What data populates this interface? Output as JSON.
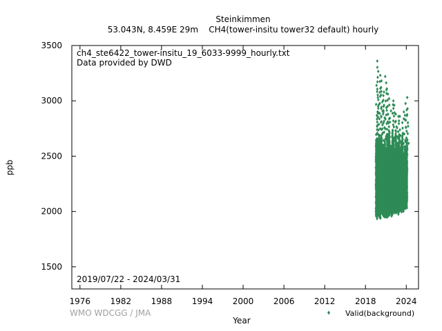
{
  "chart_data": {
    "type": "scatter",
    "title": "Steinkimmen",
    "subtitle": "53.043N, 8.459E 29m    CH4(tower-insitu tower32 default) hourly",
    "annotation_lines": [
      "ch4_ste6422_tower-insitu_19_6033-9999_hourly.txt",
      "Data provided by DWD"
    ],
    "date_range": "2019/07/22 - 2024/03/31",
    "xlabel": "Year",
    "ylabel": "ppb",
    "xlim": [
      1974.8,
      2025.8
    ],
    "ylim": [
      1300,
      3500
    ],
    "xticks": [
      1976,
      1982,
      1988,
      1994,
      2000,
      2006,
      2012,
      2018,
      2024
    ],
    "yticks": [
      1500,
      2000,
      2500,
      3000,
      3500
    ],
    "grid": false,
    "legend_position": "bottom-right",
    "watermark": "WMO WDCGG / JMA",
    "series": [
      {
        "name": "Valid(background)",
        "color": "#2e8b57",
        "marker": "diamond",
        "x_range": [
          2019.55,
          2024.25
        ],
        "baseline_min": [
          [
            2019.55,
            1920
          ],
          [
            2020.5,
            1940
          ],
          [
            2021.5,
            1950
          ],
          [
            2022.5,
            1960
          ],
          [
            2023.5,
            1990
          ],
          [
            2024.25,
            2010
          ]
        ],
        "dense_max": [
          [
            2019.55,
            2700
          ],
          [
            2020.5,
            2720
          ],
          [
            2021.5,
            2760
          ],
          [
            2022.5,
            2720
          ],
          [
            2023.5,
            2700
          ],
          [
            2024.25,
            2640
          ]
        ],
        "peaks": [
          [
            2019.8,
            3360
          ],
          [
            2020.2,
            3230
          ],
          [
            2020.4,
            3180
          ],
          [
            2020.6,
            3080
          ],
          [
            2021.0,
            3220
          ],
          [
            2021.2,
            3110
          ],
          [
            2021.6,
            3020
          ],
          [
            2022.0,
            3000
          ],
          [
            2022.3,
            2960
          ],
          [
            2022.6,
            2880
          ],
          [
            2023.0,
            2860
          ],
          [
            2023.5,
            2900
          ],
          [
            2024.0,
            3030
          ],
          [
            2024.2,
            2930
          ],
          [
            2019.7,
            3140
          ],
          [
            2019.95,
            2950
          ],
          [
            2020.8,
            2950
          ],
          [
            2021.4,
            2880
          ],
          [
            2022.8,
            2860
          ],
          [
            2023.8,
            2870
          ]
        ]
      }
    ]
  }
}
